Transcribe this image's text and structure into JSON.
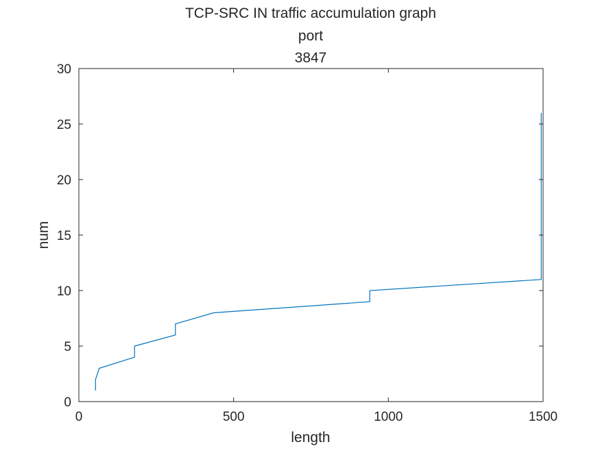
{
  "chart_data": {
    "type": "line",
    "title_lines": [
      "TCP-SRC IN traffic accumulation graph",
      "port",
      "3847"
    ],
    "xlabel": "length",
    "ylabel": "num",
    "xlim": [
      0,
      1500
    ],
    "ylim": [
      0,
      30
    ],
    "xticks": [
      0,
      500,
      1000,
      1500
    ],
    "xtick_labels": [
      "0",
      "500",
      "1000",
      "1500"
    ],
    "yticks": [
      0,
      5,
      10,
      15,
      20,
      25,
      30
    ],
    "ytick_labels": [
      "0",
      "5",
      "10",
      "15",
      "20",
      "25",
      "30"
    ],
    "grid": false,
    "series": [
      {
        "color": "#0072bd",
        "x": [
          54,
          54,
          66,
          180,
          180,
          312,
          312,
          436,
          940,
          940,
          1494,
          1494,
          1494,
          1494,
          1494,
          1494,
          1494,
          1494,
          1494,
          1494,
          1494,
          1494,
          1494,
          1494,
          1494,
          1494
        ],
        "y": [
          1,
          2,
          3,
          4,
          5,
          6,
          7,
          8,
          9,
          10,
          11,
          12,
          13,
          14,
          15,
          16,
          17,
          18,
          19,
          20,
          21,
          22,
          23,
          24,
          25,
          26
        ]
      }
    ]
  }
}
